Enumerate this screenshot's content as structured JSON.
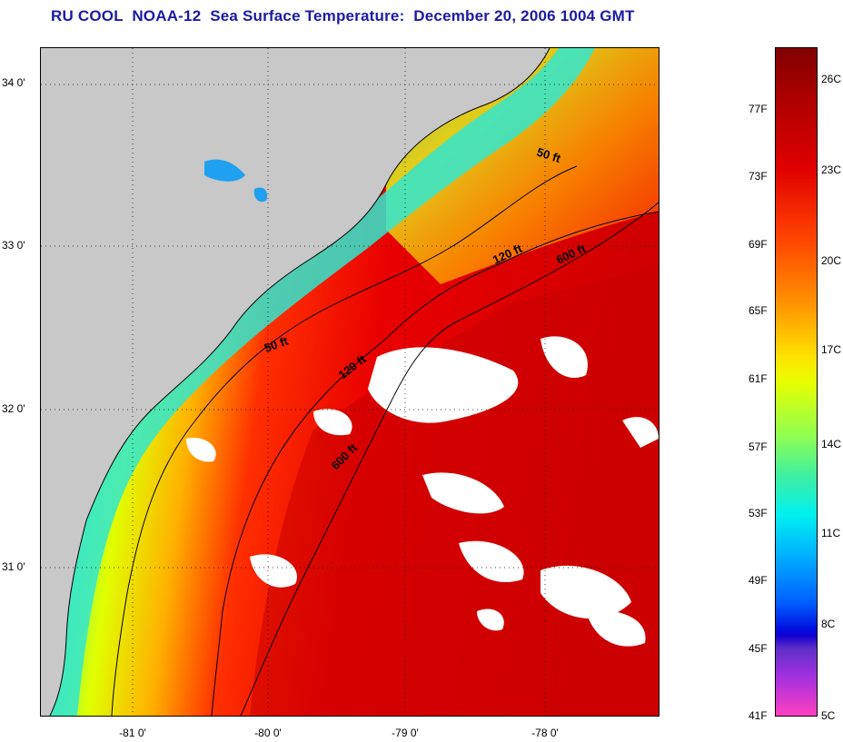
{
  "title": "RU COOL  NOAA-12  Sea Surface Temperature:  December 20, 2006 1004 GMT",
  "lat_labels": [
    "34 0'",
    "33 0'",
    "32 0'",
    "31 0'"
  ],
  "lon_labels": [
    "-81 0'",
    "-80 0'",
    "-79 0'",
    "-78 0'"
  ],
  "isobath_labels": [
    "50 ft",
    "120 ft",
    "600 ft",
    "50 ft",
    "120 ft",
    "600 ft"
  ],
  "colorbar": {
    "fahrenheit": [
      "77F",
      "73F",
      "69F",
      "65F",
      "61F",
      "57F",
      "53F",
      "49F",
      "45F",
      "41F"
    ],
    "celsius": [
      "26C",
      "23C",
      "20C",
      "17C",
      "14C",
      "11C",
      "8C",
      "5C"
    ]
  },
  "colors": {
    "land": "#c8c8c8",
    "title": "#1a1aa6",
    "cloud": "#ffffff"
  }
}
